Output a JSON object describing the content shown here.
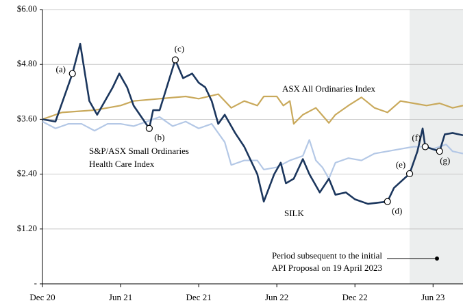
{
  "chart_data": {
    "type": "line",
    "xlim": [
      0,
      32.3
    ],
    "xticks": [
      {
        "value": 0,
        "label": "Dec 20"
      },
      {
        "value": 6,
        "label": "Jun 21"
      },
      {
        "value": 12,
        "label": "Dec 21"
      },
      {
        "value": 18,
        "label": "Jun 22"
      },
      {
        "value": 24,
        "label": "Dec 22"
      },
      {
        "value": 30,
        "label": "Jun 23"
      }
    ],
    "ylim": [
      0,
      6
    ],
    "yticks": [
      {
        "value": 0,
        "label": "-"
      },
      {
        "value": 1.2,
        "label": "$1.20"
      },
      {
        "value": 2.4,
        "label": "$2.40"
      },
      {
        "value": 3.6,
        "label": "$3.60"
      },
      {
        "value": 4.8,
        "label": "$4.80"
      },
      {
        "value": 6,
        "label": "$6.00"
      }
    ],
    "grid": true,
    "shaded_region": {
      "x": [
        28.2,
        32.3
      ],
      "color": "#eceeee"
    },
    "shaded_note": {
      "lines": [
        "Period subsequent to the initial",
        "API Proposal on 19 April 2023"
      ]
    },
    "series": [
      {
        "label_lines": [
          "ASX All Ordinaries Index"
        ],
        "color": "#c9a95b",
        "x": [
          0,
          1.5,
          4,
          6,
          7,
          9,
          11,
          12,
          13.5,
          14.5,
          15.5,
          16.5,
          17,
          18,
          18.5,
          19,
          19.3,
          20,
          21,
          22,
          22.5,
          23.5,
          24.5,
          25.5,
          26.5,
          27.5,
          28.5,
          29.5,
          30.5,
          31.5,
          32.3
        ],
        "values": [
          3.6,
          3.75,
          3.8,
          3.9,
          4.0,
          4.05,
          4.1,
          4.05,
          4.15,
          3.85,
          4.0,
          3.9,
          4.1,
          4.1,
          3.9,
          4.0,
          3.5,
          3.7,
          3.85,
          3.52,
          3.7,
          3.9,
          4.08,
          3.85,
          3.75,
          4.0,
          3.95,
          3.9,
          3.95,
          3.85,
          3.9
        ]
      },
      {
        "label_lines": [
          "S&P/ASX Small Ordinaries",
          "Health Care Index"
        ],
        "color": "#b4c8e6",
        "x": [
          0,
          1,
          2,
          3,
          4,
          5,
          6,
          7,
          8,
          9,
          10,
          11,
          12,
          13,
          14,
          14.5,
          15.5,
          16.5,
          17,
          18,
          19,
          20,
          20.5,
          21,
          21.5,
          22,
          22.5,
          23.5,
          24.5,
          25.5,
          26.5,
          27.5,
          28.5,
          29.5,
          30,
          31,
          31.5,
          32.3
        ],
        "values": [
          3.55,
          3.4,
          3.5,
          3.5,
          3.35,
          3.5,
          3.5,
          3.45,
          3.55,
          3.65,
          3.45,
          3.55,
          3.4,
          3.5,
          3.1,
          2.6,
          2.7,
          2.7,
          2.5,
          2.55,
          2.7,
          2.8,
          3.15,
          2.7,
          2.55,
          2.3,
          2.65,
          2.75,
          2.7,
          2.85,
          2.9,
          2.95,
          3.0,
          3.0,
          2.95,
          3.05,
          2.9,
          2.85
        ]
      },
      {
        "label_lines": [
          "SILK"
        ],
        "color": "#1b365d",
        "x": [
          0,
          1,
          2.3,
          2.9,
          3.6,
          4.2,
          5.4,
          5.9,
          6.5,
          7,
          8.2,
          8.5,
          9,
          10.2,
          10.8,
          11.5,
          12,
          12.5,
          13,
          13.5,
          14,
          14.8,
          15.5,
          16,
          16.5,
          17,
          17.8,
          18.3,
          18.7,
          19.3,
          20,
          20.5,
          21.3,
          22,
          22.5,
          23.3,
          24,
          25,
          26.5,
          27,
          28.2,
          28.8,
          29.2,
          29.4,
          30.5,
          30.9,
          31.5,
          32.3
        ],
        "values": [
          3.6,
          3.55,
          4.6,
          5.25,
          4.0,
          3.7,
          4.3,
          4.6,
          4.3,
          3.9,
          3.4,
          3.8,
          3.8,
          4.9,
          4.5,
          4.6,
          4.4,
          4.3,
          4.0,
          3.5,
          3.7,
          3.3,
          3.0,
          2.7,
          2.4,
          1.8,
          2.4,
          2.65,
          2.2,
          2.3,
          2.73,
          2.4,
          2.0,
          2.3,
          1.95,
          2.0,
          1.85,
          1.75,
          1.8,
          2.1,
          2.41,
          2.9,
          3.4,
          3.0,
          2.9,
          3.27,
          3.3,
          3.25
        ]
      }
    ],
    "annotations": [
      {
        "label": "(a)",
        "x": 2.3,
        "y": 4.6
      },
      {
        "label": "(b)",
        "x": 8.2,
        "y": 3.4
      },
      {
        "label": "(c)",
        "x": 10.2,
        "y": 4.9
      },
      {
        "label": "(d)",
        "x": 26.5,
        "y": 1.8
      },
      {
        "label": "(e)",
        "x": 28.2,
        "y": 2.41
      },
      {
        "label": "(f)",
        "x": 29.4,
        "y": 3.0
      },
      {
        "label": "(g)",
        "x": 30.5,
        "y": 2.9
      }
    ]
  }
}
